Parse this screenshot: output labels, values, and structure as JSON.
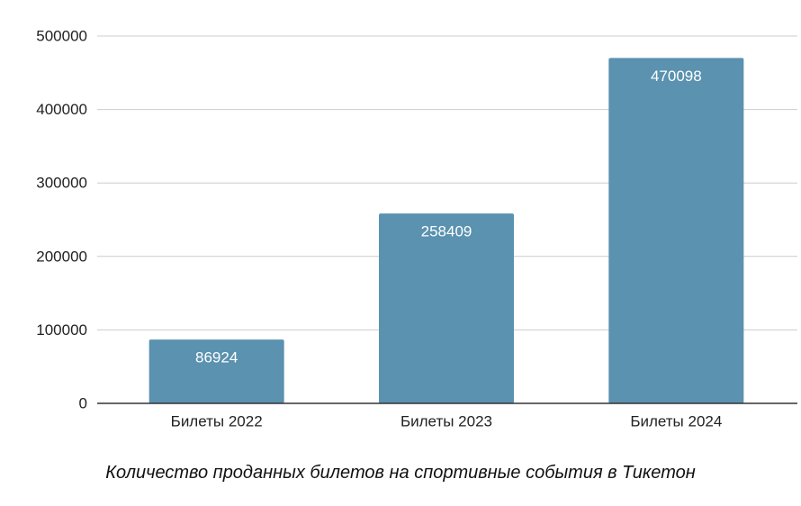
{
  "chart_data": {
    "type": "bar",
    "title": "",
    "caption": "Количество проданных билетов на спортивные события в Тикетон",
    "xlabel": "",
    "ylabel": "",
    "categories": [
      "Билеты 2022",
      "Билеты 2023",
      "Билеты 2024"
    ],
    "values": [
      86924,
      258409,
      470098
    ],
    "data_labels": [
      "86924",
      "258409",
      "470098"
    ],
    "ylim": [
      0,
      500000
    ],
    "yticks": [
      0,
      100000,
      200000,
      300000,
      400000,
      500000
    ],
    "ytick_labels": [
      "0",
      "100000",
      "200000",
      "300000",
      "400000",
      "500000"
    ],
    "grid": true,
    "legend": "none",
    "colors": {
      "bar": "#5a92b0",
      "grid": "#cccccc",
      "axis": "#333333",
      "text": "#222222",
      "data_label": "#ffffff"
    }
  }
}
